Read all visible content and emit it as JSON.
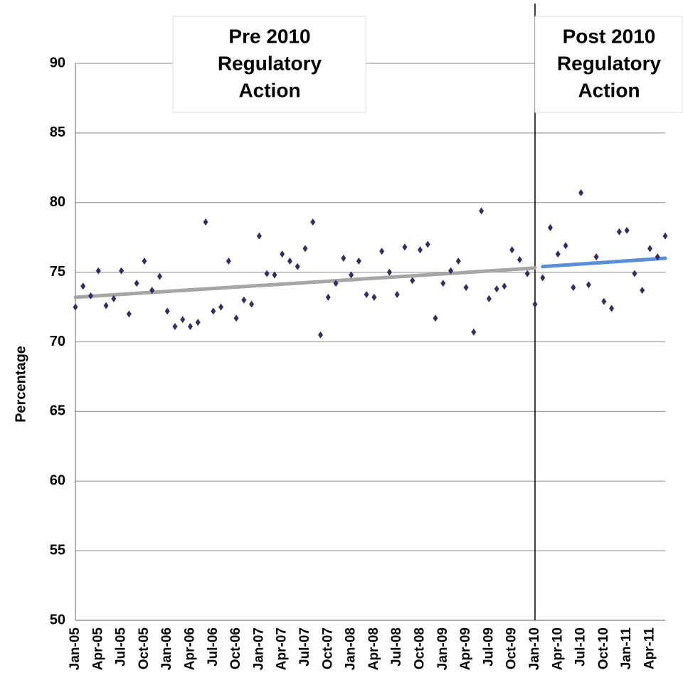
{
  "chart_data": {
    "type": "scatter",
    "y_label": "Percentage",
    "categories": [
      "Jan-05",
      null,
      null,
      "Apr-05",
      null,
      null,
      "Jul-05",
      null,
      null,
      "Oct-05",
      null,
      null,
      "Jan-06",
      null,
      null,
      "Apr-06",
      null,
      null,
      "Jul-06",
      null,
      null,
      "Oct-06",
      null,
      null,
      "Jan-07",
      null,
      null,
      "Apr-07",
      null,
      null,
      "Jul-07",
      null,
      null,
      "Oct-07",
      null,
      null,
      "Jan-08",
      null,
      null,
      "Apr-08",
      null,
      null,
      "Jul-08",
      null,
      null,
      "Oct-08",
      null,
      null,
      "Jan-09",
      null,
      null,
      "Apr-09",
      null,
      null,
      "Jul-09",
      null,
      null,
      "Oct-09",
      null,
      null,
      "Jan-10",
      null,
      null,
      "Apr-10",
      null,
      null,
      "Jul-10",
      null,
      null,
      "Oct-10",
      null,
      null,
      "Jan-11",
      null,
      null,
      "Apr-11",
      null,
      null
    ],
    "series": [
      {
        "color": "#3b2a5e",
        "values": [
          72.5,
          74.0,
          73.3,
          75.1,
          72.6,
          73.1,
          75.1,
          72.0,
          74.2,
          75.8,
          73.7,
          74.7,
          72.2,
          71.1,
          71.6,
          71.1,
          71.4,
          78.6,
          72.2,
          72.5,
          75.8,
          71.7,
          73.0,
          72.7,
          77.6,
          74.9,
          74.8,
          76.3,
          75.8,
          75.4,
          76.7,
          78.6,
          70.5,
          73.2,
          74.2,
          76.0,
          74.8,
          75.8,
          73.4,
          73.2,
          76.5,
          75.0,
          73.4,
          76.8,
          74.4,
          76.6,
          77.0,
          71.7,
          74.2,
          75.1,
          75.8,
          73.9,
          70.7,
          79.4,
          73.1,
          73.8,
          74.0,
          76.6,
          75.9,
          74.9,
          72.7,
          74.6,
          78.2,
          76.3,
          76.9,
          73.9,
          80.7,
          74.1,
          76.1,
          72.9,
          72.4,
          77.9,
          78.0,
          74.9,
          73.7,
          76.7,
          76.1,
          77.6
        ]
      }
    ],
    "trend_lines": [
      {
        "color": "#a6a6a6",
        "x": [
          0,
          60
        ],
        "values": [
          73.2,
          75.3
        ]
      },
      {
        "color": "#5b8fd6",
        "x": [
          61,
          77
        ],
        "values": [
          75.4,
          76.0
        ]
      }
    ],
    "divider_x": 60,
    "annotations": [
      [
        "Pre 2010",
        "Regulatory",
        "Action"
      ],
      [
        "Post 2010",
        "Regulatory",
        "Action"
      ]
    ],
    "ylim": [
      50,
      90
    ],
    "yticks": [
      50,
      55,
      60,
      65,
      70,
      75,
      80,
      85,
      90
    ],
    "grid": true
  }
}
